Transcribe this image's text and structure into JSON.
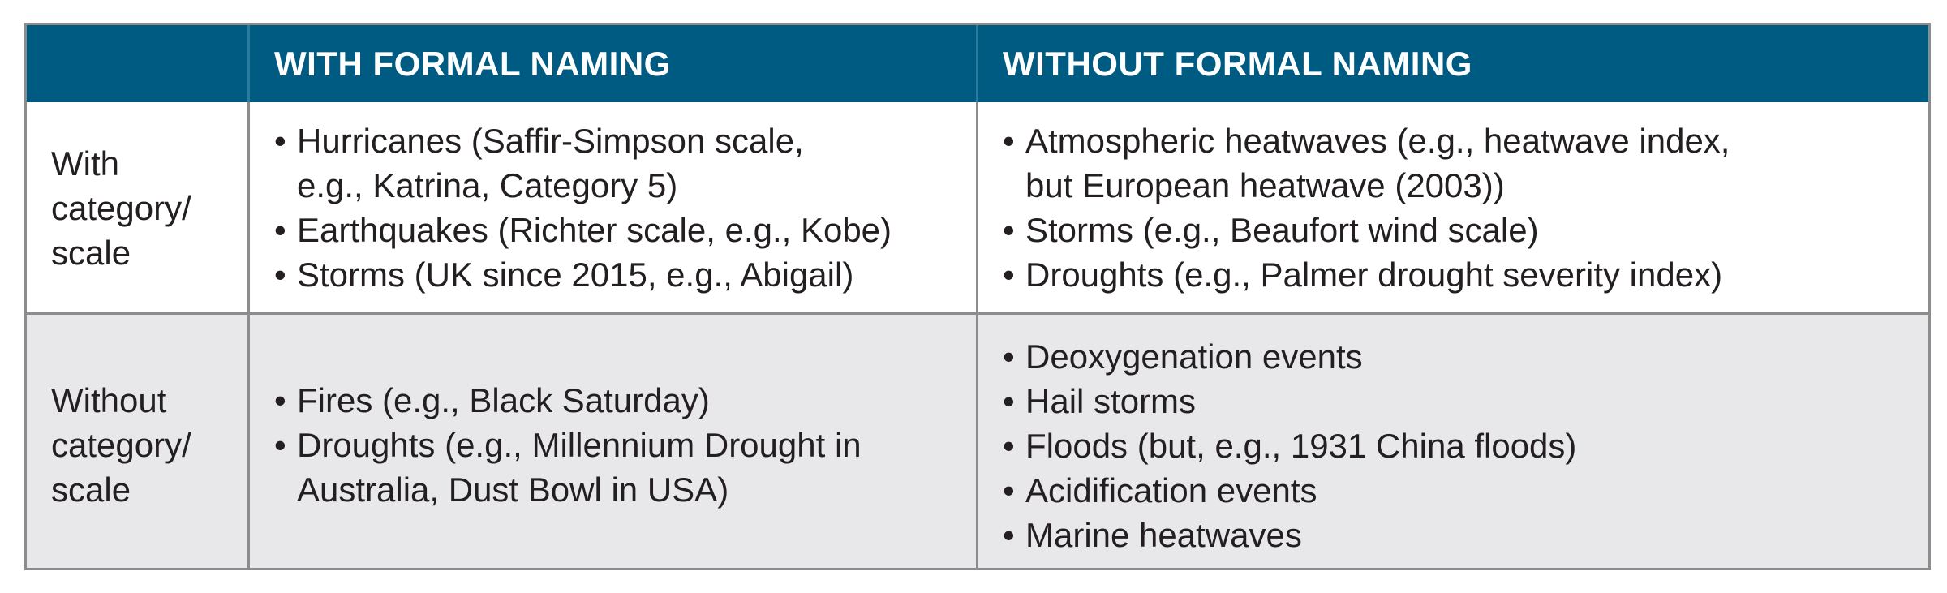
{
  "header": {
    "corner": "",
    "col1": "WITH FORMAL NAMING",
    "col2": "WITHOUT FORMAL NAMING"
  },
  "rows": [
    {
      "label_lines": [
        "With",
        "category/",
        "scale"
      ],
      "col1": [
        [
          "Hurricanes (Saffir-Simpson scale,",
          "e.g., Katrina, Category 5)"
        ],
        [
          "Earthquakes (Richter scale, e.g., Kobe)"
        ],
        [
          "Storms (UK since 2015, e.g., Abigail)"
        ]
      ],
      "col2": [
        [
          "Atmospheric heatwaves (e.g., heatwave index,",
          "but European heatwave (2003))"
        ],
        [
          "Storms (e.g., Beaufort wind scale)"
        ],
        [
          "Droughts (e.g., Palmer drought severity index)"
        ]
      ]
    },
    {
      "label_lines": [
        "Without",
        "category/",
        "scale"
      ],
      "col1": [
        [
          "Fires (e.g., Black Saturday)"
        ],
        [
          "Droughts (e.g., Millennium Drought in",
          "Australia, Dust Bowl in USA)"
        ]
      ],
      "col2": [
        [
          "Deoxygenation events"
        ],
        [
          "Hail storms"
        ],
        [
          "Floods (but, e.g., 1931 China floods)"
        ],
        [
          "Acidification events"
        ],
        [
          "Marine heatwaves"
        ]
      ]
    }
  ],
  "colors": {
    "header_bg": "#005b82",
    "row_alt_bg": "#e8e8ea",
    "border": "#8c8c8c"
  }
}
